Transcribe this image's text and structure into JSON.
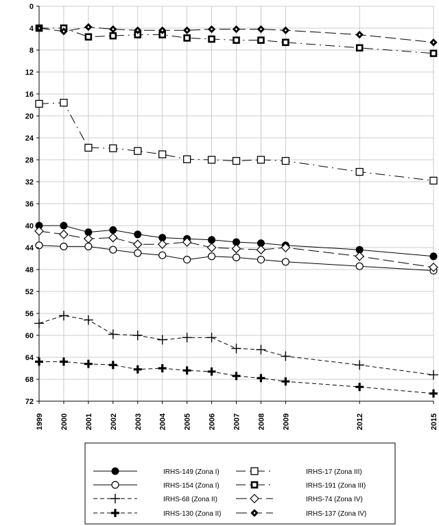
{
  "chart_data": {
    "type": "line",
    "title": "",
    "xlabel": "",
    "ylabel": "",
    "ylim": [
      0,
      72
    ],
    "y_inverted": true,
    "y_ticks": [
      0,
      4,
      8,
      12,
      16,
      20,
      24,
      28,
      32,
      36,
      40,
      44,
      48,
      52,
      56,
      60,
      64,
      68,
      72
    ],
    "x": [
      1999,
      2000,
      2001,
      2002,
      2003,
      2004,
      2005,
      2006,
      2007,
      2008,
      2009,
      2012,
      2015
    ],
    "x_tick_labels": [
      "1999",
      "2000",
      "2001",
      "2002",
      "2003",
      "2004",
      "2005",
      "2006",
      "2007",
      "2008",
      "2009",
      "2012",
      "2015"
    ],
    "grid": true,
    "legend_position": "bottom",
    "series": [
      {
        "name": "IRHS-149 (Zona I)",
        "marker": "filled-circle",
        "dash": "solid",
        "color": "#000000",
        "values": [
          40,
          40,
          41.2,
          40.8,
          41.6,
          42.2,
          42.4,
          42.6,
          43,
          43.2,
          43.6,
          44.4,
          45.6
        ]
      },
      {
        "name": "IRHS-154 (Zona I)",
        "marker": "open-circle",
        "dash": "solid",
        "color": "#000000",
        "values": [
          43.6,
          43.8,
          43.8,
          44.4,
          45,
          45.4,
          46.2,
          45.6,
          45.8,
          46.2,
          46.6,
          47.4,
          48.2
        ]
      },
      {
        "name": "IRHS-68 (Zona II)",
        "marker": "thin-plus",
        "dash": "dashed",
        "color": "#000000",
        "values": [
          57.8,
          56.4,
          57.2,
          59.8,
          60,
          60.8,
          60.4,
          60.4,
          62.4,
          62.6,
          63.8,
          65.4,
          67.2
        ]
      },
      {
        "name": "IRHS-130 (Zona II)",
        "marker": "bold-plus",
        "dash": "dashed",
        "color": "#000000",
        "values": [
          64.8,
          64.8,
          65.2,
          65.4,
          66.2,
          66,
          66.4,
          66.6,
          67.4,
          67.8,
          68.4,
          69.4,
          70.6
        ]
      },
      {
        "name": "IRHS-17 (Zona III)",
        "marker": "open-square",
        "dash": "dash-dot",
        "color": "#000000",
        "values": [
          17.8,
          17.6,
          25.8,
          25.9,
          26.4,
          27,
          27.9,
          28,
          28.2,
          28,
          28.2,
          30.2,
          31.8
        ]
      },
      {
        "name": "IRHS-191 (Zona III)",
        "marker": "bold-square",
        "dash": "dash-dot",
        "color": "#000000",
        "values": [
          4,
          4,
          5.6,
          5.4,
          5.2,
          5.2,
          5.8,
          6,
          6.2,
          6.2,
          6.6,
          7.6,
          8.6
        ]
      },
      {
        "name": "IRHS-74 (Zona IV)",
        "marker": "open-diamond",
        "dash": "long-dash",
        "color": "#000000",
        "values": [
          41,
          41.6,
          42.4,
          42.2,
          43.4,
          43.4,
          43,
          44,
          44.2,
          44.4,
          44,
          45.6,
          47.6
        ]
      },
      {
        "name": "IRHS-137 (Zona IV)",
        "marker": "dotted-diamond",
        "dash": "long-dash",
        "color": "#000000",
        "values": [
          4,
          4.6,
          3.8,
          4.2,
          4.4,
          4.4,
          4.4,
          4.2,
          4.2,
          4.2,
          4.4,
          5.2,
          6.6
        ]
      }
    ]
  }
}
